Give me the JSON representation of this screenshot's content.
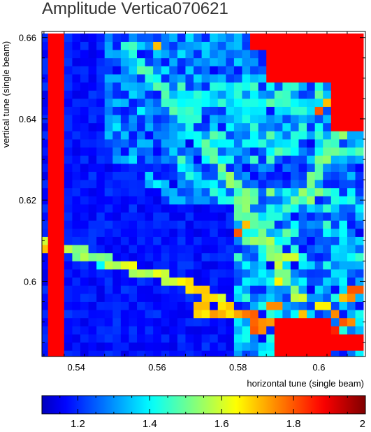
{
  "chart_data": {
    "type": "heatmap",
    "title": "Amplitude Vertica070621",
    "xlabel": "horizontal tune (single beam)",
    "ylabel": "vertical tune (single beam)",
    "xlim": [
      0.5315,
      0.6115
    ],
    "ylim": [
      0.5815,
      0.6615
    ],
    "x_ticks": [
      {
        "value": 0.54,
        "label": "0.54"
      },
      {
        "value": 0.56,
        "label": "0.56"
      },
      {
        "value": 0.58,
        "label": "0.58"
      },
      {
        "value": 0.6,
        "label": "0.6"
      }
    ],
    "y_ticks": [
      {
        "value": 0.6,
        "label": "0.6"
      },
      {
        "value": 0.62,
        "label": "0.62"
      },
      {
        "value": 0.64,
        "label": "0.64"
      },
      {
        "value": 0.66,
        "label": "0.66"
      }
    ],
    "grid": {
      "x_start": 0.532,
      "y_start": 0.582,
      "step": 0.002,
      "nx": 40,
      "ny": 40
    },
    "color_scale": {
      "min": 1.1,
      "max": 2.0,
      "colormap": "jet",
      "ticks": [
        {
          "value": 1.2,
          "label": "1.2"
        },
        {
          "value": 1.4,
          "label": "1.4"
        },
        {
          "value": 1.6,
          "label": "1.6"
        },
        {
          "value": 1.8,
          "label": "1.8"
        },
        {
          "value": 2.0,
          "label": "2"
        }
      ]
    },
    "value_description": "Approximate tracked amplitude values (color) read from the tune-scan map; ranges 1.1-2.0, saturated (red) at and above 2.",
    "background_value": 1.18,
    "saturated_regions": [
      {
        "x_range": [
          0.534,
          0.536
        ],
        "y_range": [
          0.582,
          0.661
        ],
        "value": 2.0
      },
      {
        "x_range": [
          0.587,
          0.612
        ],
        "y_range": [
          0.6485,
          0.662
        ],
        "value": 2.0
      },
      {
        "x_range": [
          0.6025,
          0.612
        ],
        "y_range": [
          0.638,
          0.65
        ],
        "value": 2.0
      },
      {
        "x_range": [
          0.584,
          0.598
        ],
        "y_range": [
          0.6565,
          0.662
        ],
        "value": 2.0
      },
      {
        "x_range": [
          0.59,
          0.603
        ],
        "y_range": [
          0.582,
          0.59
        ],
        "value": 2.0
      },
      {
        "x_range": [
          0.602,
          0.612
        ],
        "y_range": [
          0.583,
          0.587
        ],
        "value": 2.0
      }
    ],
    "resonance_lines": [
      {
        "from": [
          0.5315,
          0.61
        ],
        "to": [
          0.552,
          0.6035
        ],
        "value": 1.55
      },
      {
        "from": [
          0.552,
          0.6035
        ],
        "to": [
          0.566,
          0.6
        ],
        "value": 1.6
      },
      {
        "from": [
          0.566,
          0.6
        ],
        "to": [
          0.58,
          0.5925
        ],
        "value": 1.65
      },
      {
        "from": [
          0.57,
          0.593
        ],
        "to": [
          0.582,
          0.5915
        ],
        "value": 1.7
      },
      {
        "from": [
          0.58,
          0.5925
        ],
        "to": [
          0.59,
          0.589
        ],
        "value": 1.75
      },
      {
        "from": [
          0.553,
          0.6575
        ],
        "to": [
          0.5765,
          0.6275
        ],
        "value": 1.45
      },
      {
        "from": [
          0.5765,
          0.6275
        ],
        "to": [
          0.5865,
          0.6115
        ],
        "value": 1.5
      },
      {
        "from": [
          0.5865,
          0.6115
        ],
        "to": [
          0.594,
          0.597
        ],
        "value": 1.55
      },
      {
        "from": [
          0.595,
          0.6195
        ],
        "to": [
          0.61,
          0.643
        ],
        "value": 1.5
      },
      {
        "from": [
          0.583,
          0.6115
        ],
        "to": [
          0.596,
          0.6205
        ],
        "value": 1.45
      },
      {
        "from": [
          0.5855,
          0.6055
        ],
        "to": [
          0.5935,
          0.612
        ],
        "value": 1.45
      },
      {
        "from": [
          0.5665,
          0.628
        ],
        "to": [
          0.578,
          0.62
        ],
        "value": 1.4
      },
      {
        "from": [
          0.578,
          0.62
        ],
        "to": [
          0.585,
          0.612
        ],
        "value": 1.45
      },
      {
        "from": [
          0.558,
          0.6255
        ],
        "to": [
          0.565,
          0.62
        ],
        "value": 1.35
      },
      {
        "from": [
          0.5395,
          0.6065
        ],
        "to": [
          0.552,
          0.6035
        ],
        "value": 1.35
      },
      {
        "from": [
          0.572,
          0.6445
        ],
        "to": [
          0.6,
          0.6425
        ],
        "value": 1.4
      }
    ],
    "warm_spots": [
      {
        "x": 0.5935,
        "y": 0.6605,
        "value": 1.6
      },
      {
        "x": 0.5965,
        "y": 0.6585,
        "value": 1.7
      },
      {
        "x": 0.5995,
        "y": 0.6555,
        "value": 1.75
      },
      {
        "x": 0.6,
        "y": 0.6425,
        "value": 1.8
      },
      {
        "x": 0.603,
        "y": 0.6435,
        "value": 1.7
      },
      {
        "x": 0.5595,
        "y": 0.6585,
        "value": 1.7
      },
      {
        "x": 0.5355,
        "y": 0.6425,
        "value": 1.7
      },
      {
        "x": 0.5325,
        "y": 0.6085,
        "value": 1.7
      },
      {
        "x": 0.593,
        "y": 0.6065,
        "value": 1.6
      },
      {
        "x": 0.5905,
        "y": 0.6005,
        "value": 1.65
      },
      {
        "x": 0.589,
        "y": 0.5935,
        "value": 1.75
      },
      {
        "x": 0.5835,
        "y": 0.5875,
        "value": 1.8
      },
      {
        "x": 0.5865,
        "y": 0.5885,
        "value": 1.75
      },
      {
        "x": 0.592,
        "y": 0.5875,
        "value": 1.8
      },
      {
        "x": 0.5965,
        "y": 0.5915,
        "value": 1.7
      },
      {
        "x": 0.5995,
        "y": 0.5885,
        "value": 1.75
      },
      {
        "x": 0.6025,
        "y": 0.5895,
        "value": 1.8
      },
      {
        "x": 0.6045,
        "y": 0.5875,
        "value": 1.85
      },
      {
        "x": 0.6065,
        "y": 0.5895,
        "value": 1.8
      },
      {
        "x": 0.6085,
        "y": 0.5905,
        "value": 1.75
      },
      {
        "x": 0.609,
        "y": 0.5985,
        "value": 1.8
      },
      {
        "x": 0.6085,
        "y": 0.5965,
        "value": 1.75
      },
      {
        "x": 0.6065,
        "y": 0.5955,
        "value": 1.7
      },
      {
        "x": 0.601,
        "y": 0.5945,
        "value": 1.65
      },
      {
        "x": 0.6045,
        "y": 0.5925,
        "value": 1.75
      },
      {
        "x": 0.5965,
        "y": 0.5955,
        "value": 1.6
      },
      {
        "x": 0.5735,
        "y": 0.5955,
        "value": 1.65
      },
      {
        "x": 0.5715,
        "y": 0.5965,
        "value": 1.6
      },
      {
        "x": 0.5815,
        "y": 0.6135,
        "value": 1.7
      },
      {
        "x": 0.5805,
        "y": 0.6125,
        "value": 1.8
      },
      {
        "x": 0.5825,
        "y": 0.6095,
        "value": 1.5
      },
      {
        "x": 0.5845,
        "y": 0.6105,
        "value": 1.55
      }
    ],
    "speckle_regions": [
      {
        "x_range": [
          0.5465,
          0.612
        ],
        "y_range": [
          0.63,
          0.662
        ],
        "amplitude": 0.18
      },
      {
        "x_range": [
          0.58,
          0.612
        ],
        "y_range": [
          0.582,
          0.622
        ],
        "amplitude": 0.25
      },
      {
        "x_range": [
          0.566,
          0.612
        ],
        "y_range": [
          0.62,
          0.65
        ],
        "amplitude": 0.12
      }
    ]
  }
}
